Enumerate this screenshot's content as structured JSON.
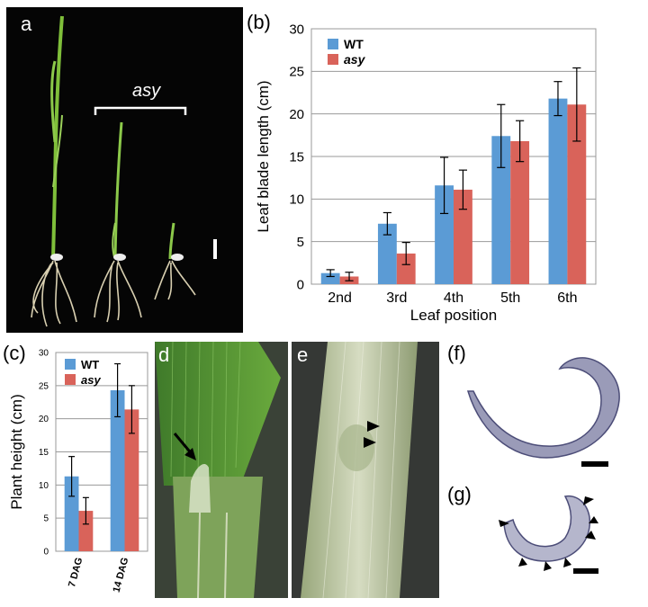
{
  "panels": {
    "a": {
      "label": "a",
      "annotation": "asy"
    },
    "b": {
      "label": "(b)"
    },
    "c": {
      "label": "(c)"
    },
    "d": {
      "label": "d"
    },
    "e": {
      "label": "e"
    },
    "f": {
      "label": "(f)"
    },
    "g": {
      "label": "(g)"
    }
  },
  "chart_data": [
    {
      "id": "b",
      "type": "bar",
      "categories": [
        "2nd",
        "3rd",
        "4th",
        "5th",
        "6th"
      ],
      "series": [
        {
          "name": "WT",
          "values": [
            1.3,
            7.1,
            11.6,
            17.4,
            21.8
          ],
          "errors": [
            0.4,
            1.3,
            3.3,
            3.7,
            2.0
          ],
          "color": "#5b9bd5"
        },
        {
          "name": "asy",
          "values": [
            0.9,
            3.6,
            11.1,
            16.8,
            21.1
          ],
          "errors": [
            0.5,
            1.3,
            2.3,
            2.4,
            4.3
          ],
          "color": "#d9635a"
        }
      ],
      "xlabel": "Leaf position",
      "ylabel": "Leaf blade length (cm)",
      "ylim": [
        0,
        30
      ],
      "yticks": [
        "0",
        "5",
        "10",
        "15",
        "20",
        "25",
        "30"
      ],
      "grid": true,
      "legend": "top-left"
    },
    {
      "id": "c",
      "type": "bar",
      "categories": [
        "7 DAG",
        "14 DAG"
      ],
      "series": [
        {
          "name": "WT",
          "values": [
            11.3,
            24.3
          ],
          "errors": [
            3.0,
            4.0
          ],
          "color": "#5b9bd5"
        },
        {
          "name": "asy",
          "values": [
            6.1,
            21.4
          ],
          "errors": [
            2.0,
            3.6
          ],
          "color": "#d9635a"
        }
      ],
      "ylabel": "Plant height (cm)",
      "ylim": [
        0,
        30
      ],
      "yticks": [
        "0",
        "5",
        "10",
        "15",
        "20",
        "25",
        "30"
      ],
      "grid": true,
      "legend": "top-left"
    }
  ]
}
